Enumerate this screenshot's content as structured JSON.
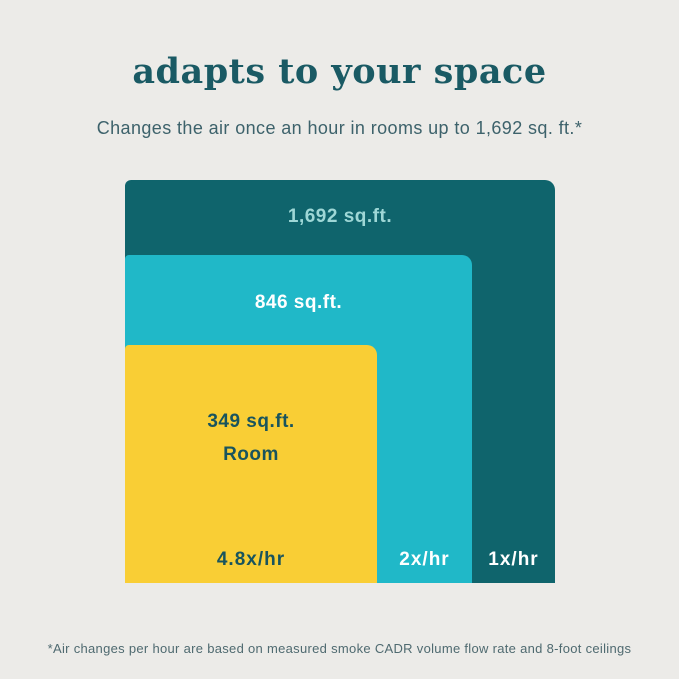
{
  "page": {
    "title": "adapts to your space",
    "subtitle": "Changes the air once an hour in rooms up to 1,692 sq. ft.*",
    "footnote": "*Air changes per hour are based on measured smoke CADR volume flow rate and 8-foot ceilings"
  },
  "colors": {
    "background": "#ECEBE8",
    "title": "#1A5A64",
    "subtitle": "#3D626B",
    "room_1692_fill": "#0F646C",
    "room_1692_label": "#9ED7D6",
    "room_846_fill": "#20B8C8",
    "room_846_label": "#FFFFFF",
    "room_349_fill": "#F9CE35",
    "room_349_label": "#19545D",
    "footnote": "#4F6A70"
  },
  "diagram": {
    "rooms": [
      {
        "size_label": "1,692 sq.ft.",
        "rate_label": "1x/hr",
        "area_sqft": 1692
      },
      {
        "size_label": "846 sq.ft.",
        "rate_label": "2x/hr",
        "area_sqft": 846
      },
      {
        "size_label": "349 sq.ft.",
        "room_word": "Room",
        "rate_label": "4.8x/hr",
        "area_sqft": 349
      }
    ]
  },
  "chart_data": {
    "type": "area",
    "subtype": "nested-proportional-rectangles",
    "title": "adapts to your space",
    "subtitle": "Changes the air once an hour in rooms up to 1,692 sq. ft.*",
    "footnote": "*Air changes per hour are based on measured smoke CADR volume flow rate and 8-foot ceilings",
    "series": [
      {
        "name": "1,692 sq.ft.",
        "area_sqft": 1692,
        "air_changes_per_hour": 1,
        "rate_label": "1x/hr",
        "fill": "#0F646C",
        "label_color": "#9ED7D6"
      },
      {
        "name": "846 sq.ft.",
        "area_sqft": 846,
        "air_changes_per_hour": 2,
        "rate_label": "2x/hr",
        "fill": "#20B8C8",
        "label_color": "#FFFFFF"
      },
      {
        "name": "349 sq.ft. Room",
        "area_sqft": 349,
        "air_changes_per_hour": 4.8,
        "rate_label": "4.8x/hr",
        "fill": "#F9CE35",
        "label_color": "#19545D"
      }
    ],
    "layout": "rectangles share common bottom-left corner, rounded top-right corners, areas anchored bottom-left"
  }
}
